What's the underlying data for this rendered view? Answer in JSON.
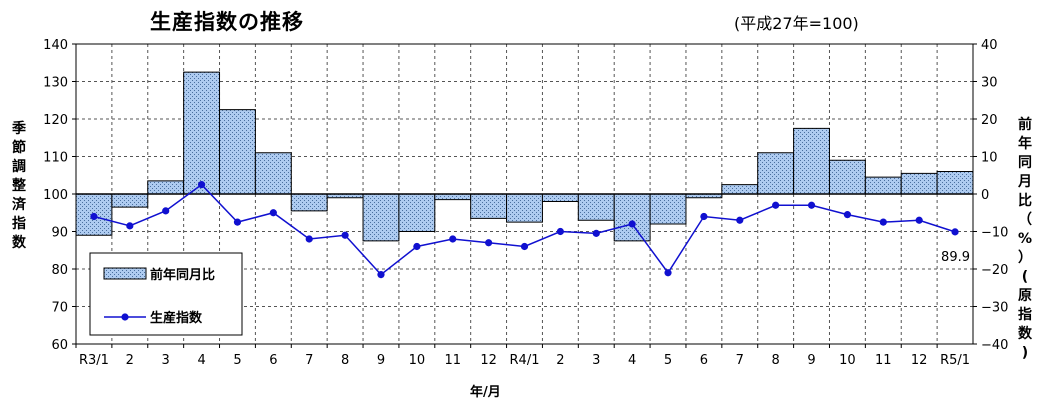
{
  "chart_data": {
    "type": "bar+line",
    "title": "生産指数の推移",
    "subtitle": "(平成27年=100)",
    "ylabel_left": "季節調整済指数",
    "ylabel_right": "前年同月比（%）(原指数)",
    "xlabel": "年/月",
    "categories": [
      "R3/1",
      "2",
      "3",
      "4",
      "5",
      "6",
      "7",
      "8",
      "9",
      "10",
      "11",
      "12",
      "R4/1",
      "2",
      "3",
      "4",
      "5",
      "6",
      "7",
      "8",
      "9",
      "10",
      "11",
      "12",
      "R5/1"
    ],
    "ylim_left": [
      60,
      140
    ],
    "yticks_left": [
      "60",
      "70",
      "80",
      "90",
      "100",
      "110",
      "120",
      "130",
      "140"
    ],
    "ylim_right": [
      -40,
      40
    ],
    "yticks_right": [
      "−40",
      "−30",
      "−20",
      "−10",
      "0",
      "10",
      "20",
      "30",
      "40"
    ],
    "grid": true,
    "legend_position": "bottom-left",
    "series": [
      {
        "name": "前年同月比",
        "type": "bar",
        "axis": "right",
        "color": "#a9c8ee",
        "values": [
          -11,
          -3.5,
          3.5,
          32.5,
          22.5,
          11,
          -4.5,
          -1,
          -12.5,
          -10,
          -1.5,
          -6.5,
          -7.5,
          -2,
          -7,
          -12.5,
          -8,
          -1,
          2.5,
          11,
          17.5,
          9,
          4.5,
          5.5,
          6
        ]
      },
      {
        "name": "生産指数",
        "type": "line",
        "axis": "left",
        "color": "#1010d0",
        "values": [
          94,
          91.5,
          95.5,
          102.5,
          92.5,
          95,
          88,
          89,
          78.5,
          86,
          88,
          87,
          86,
          90,
          89.5,
          92,
          79,
          94,
          93,
          97,
          97,
          94.5,
          92.5,
          93,
          89.9
        ]
      }
    ],
    "annotations": [
      "89.9"
    ]
  }
}
